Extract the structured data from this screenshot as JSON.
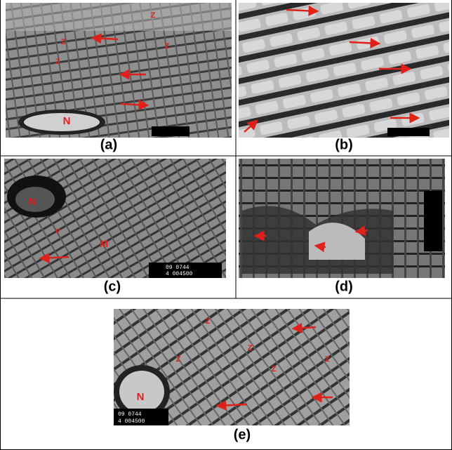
{
  "panels": [
    {
      "label": "(a)",
      "annotations": [
        "Z",
        "Z",
        "Z",
        "Z",
        "N"
      ]
    },
    {
      "label": "(b)"
    },
    {
      "label": "(c)",
      "annotations": [
        "N",
        "V",
        "M"
      ],
      "scale_text": [
        "09 0744",
        "4 004500"
      ]
    },
    {
      "label": "(d)"
    },
    {
      "label": "(e)",
      "annotations": [
        "Z",
        "Z",
        "Z",
        "Z",
        "Z",
        "N"
      ],
      "scale_text": [
        "09 0744",
        "4 004500"
      ]
    }
  ]
}
